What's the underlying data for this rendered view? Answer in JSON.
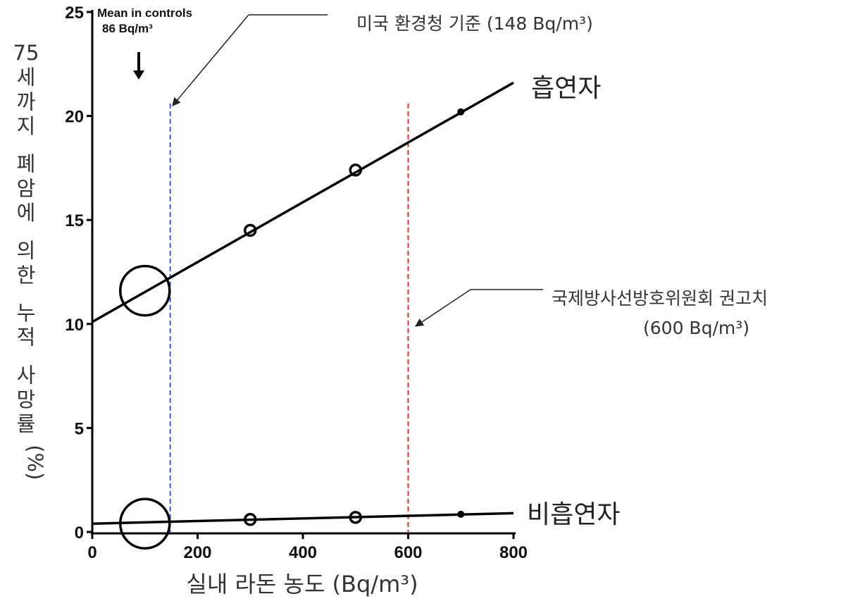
{
  "chart_data": {
    "type": "line",
    "xlabel": "실내 라돈 농도 (Bq/m³)",
    "ylabel": "75세까지 폐암에 의한 누적 사망률(%)",
    "xlim": [
      0,
      800
    ],
    "ylim": [
      0,
      25
    ],
    "x_ticks": [
      0,
      200,
      400,
      600,
      800
    ],
    "y_ticks": [
      0,
      5,
      10,
      15,
      20,
      25
    ],
    "grid": false,
    "series": [
      {
        "name": "흡연자",
        "line": {
          "x": [
            0,
            800
          ],
          "y": [
            10.1,
            21.6
          ]
        },
        "points": [
          {
            "x": 100,
            "y": 11.6,
            "marker": "large-circle"
          },
          {
            "x": 300,
            "y": 14.5,
            "marker": "circle"
          },
          {
            "x": 500,
            "y": 17.4,
            "marker": "circle"
          },
          {
            "x": 700,
            "y": 20.2,
            "marker": "dot"
          }
        ]
      },
      {
        "name": "비흡연자",
        "line": {
          "x": [
            0,
            800
          ],
          "y": [
            0.4,
            0.9
          ]
        },
        "points": [
          {
            "x": 100,
            "y": 0.4,
            "marker": "large-circle"
          },
          {
            "x": 300,
            "y": 0.6,
            "marker": "circle"
          },
          {
            "x": 500,
            "y": 0.7,
            "marker": "circle"
          },
          {
            "x": 700,
            "y": 0.85,
            "marker": "dot"
          }
        ]
      }
    ],
    "reference_lines": [
      {
        "x": 148,
        "color": "#3344dd",
        "style": "dashed",
        "label": "미국 환경청 기준 (148 Bq/m³)"
      },
      {
        "x": 600,
        "color": "#dd2222",
        "style": "dashed",
        "label_line1": "국제방사선방호위원회 권고치",
        "label_line2": "(600 Bq/m³)"
      }
    ],
    "control_annotation": {
      "line1": "Mean in controls",
      "line2": "86 Bq/m³",
      "x": 86
    }
  }
}
